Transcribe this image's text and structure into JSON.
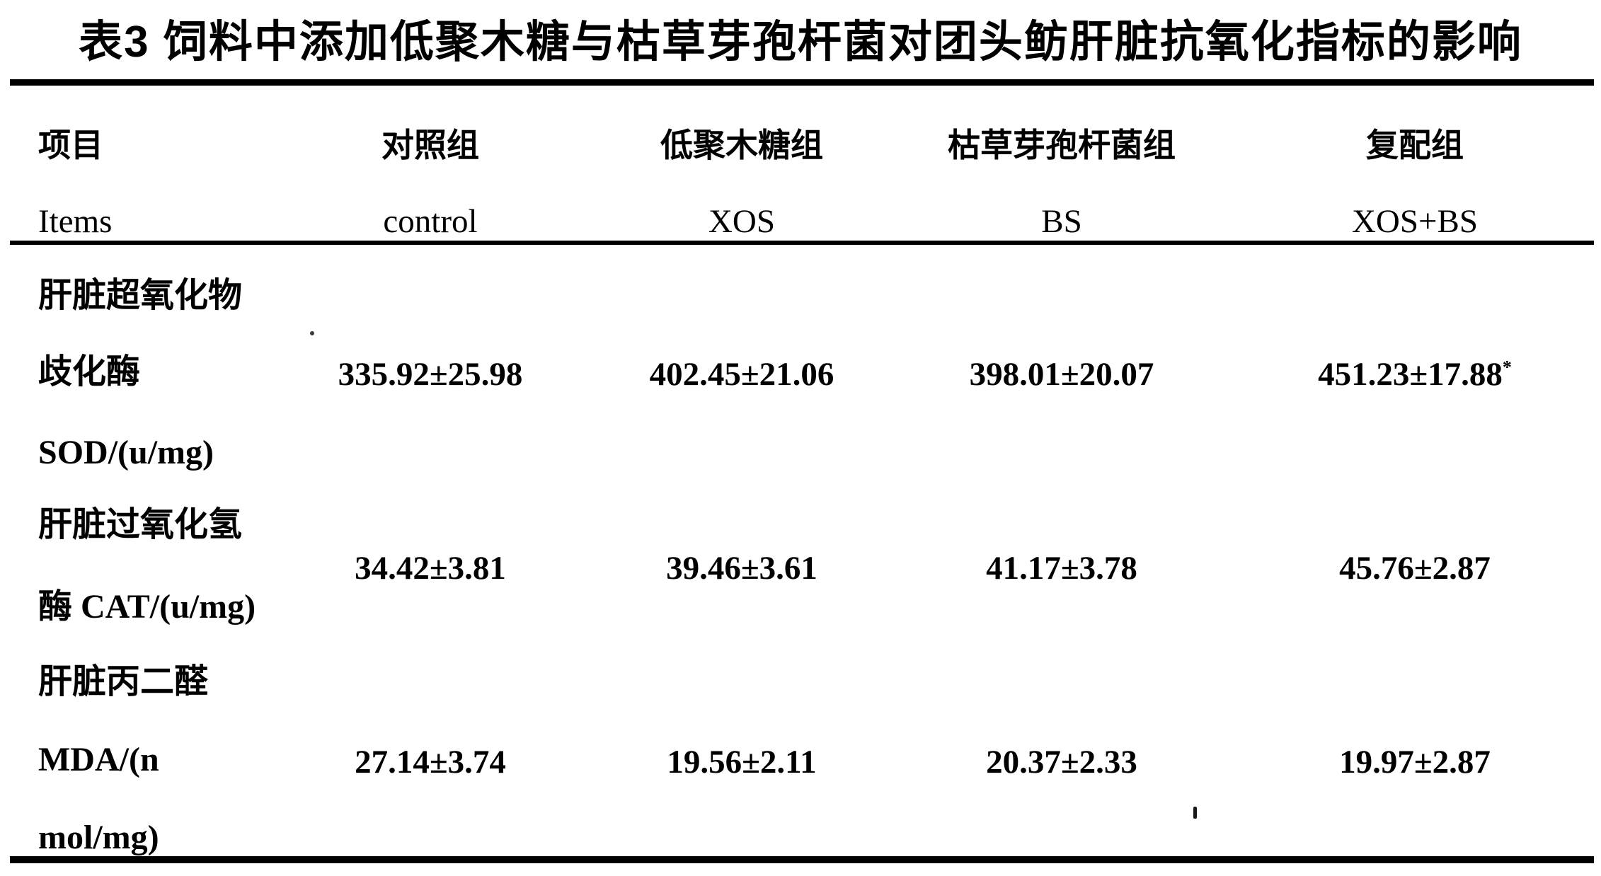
{
  "title": "表3 饲料中添加低聚木糖与枯草芽孢杆菌对团头鲂肝脏抗氧化指标的影响",
  "table": {
    "header": {
      "item_zh": "项目",
      "item_en": "Items",
      "groups_zh": [
        "对照组",
        "低聚木糖组",
        "枯草芽孢杆菌组",
        "复配组"
      ],
      "groups_en": [
        "control",
        "XOS",
        "BS",
        "XOS+BS"
      ]
    },
    "rows": [
      {
        "label_lines": [
          "肝脏超氧化物",
          "歧化酶",
          "SOD/(u/mg)"
        ],
        "values": [
          "335.92±25.98",
          "402.45±21.06",
          "398.01±20.07",
          "451.23±17.88"
        ],
        "note": "*"
      },
      {
        "label_lines": [
          "肝脏过氧化氢",
          "酶 CAT/(u/mg)"
        ],
        "values": [
          "34.42±3.81",
          "39.46±3.61",
          "41.17±3.78",
          "45.76±2.87"
        ]
      },
      {
        "label_lines": [
          "肝脏丙二醛",
          "MDA/(n",
          "mol/mg)"
        ],
        "values": [
          "27.14±3.74",
          "19.56±2.11",
          "20.37±2.33",
          "19.97±2.87"
        ]
      }
    ]
  },
  "colors": {
    "ink": "#000000",
    "paper": "#ffffff"
  }
}
